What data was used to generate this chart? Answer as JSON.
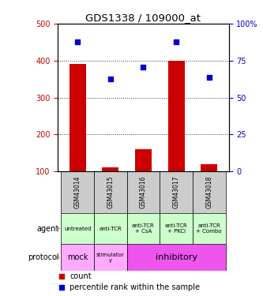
{
  "title": "GDS1338 / 109000_at",
  "samples": [
    "GSM43014",
    "GSM43015",
    "GSM43016",
    "GSM43017",
    "GSM43018"
  ],
  "bar_values": [
    390,
    110,
    160,
    400,
    120
  ],
  "bar_base": 100,
  "scatter_y_left": [
    450,
    350,
    382,
    450,
    355
  ],
  "ylim_left": [
    100,
    500
  ],
  "ylim_right": [
    0,
    100
  ],
  "yticks_left": [
    100,
    200,
    300,
    400,
    500
  ],
  "yticks_right": [
    0,
    25,
    50,
    75,
    100
  ],
  "bar_color": "#cc0000",
  "scatter_color": "#0000cc",
  "agent_labels": [
    "untreated",
    "anti-TCR",
    "anti-TCR\n+ CsA",
    "anti-TCR\n+ PKCi",
    "anti-TCR\n+ Combo"
  ],
  "agent_bg": "#ccffcc",
  "sample_bg": "#cccccc",
  "legend_count_color": "#cc0000",
  "legend_pct_color": "#0000cc",
  "left_ylabel_color": "#cc0000",
  "right_ylabel_color": "#0000cc",
  "protocol_mock_bg": "#ffaaff",
  "protocol_stimulatory_bg": "#ffaaff",
  "protocol_inhibitory_bg": "#ee55ee"
}
